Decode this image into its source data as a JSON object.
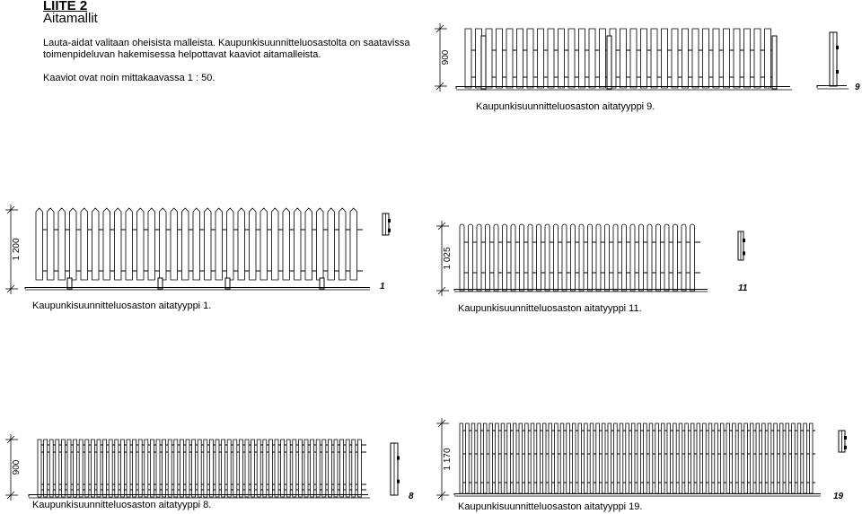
{
  "header": {
    "title": "LIITE 2",
    "subtitle": "Aitamallit"
  },
  "intro": {
    "text": "Lauta-aidat valitaan oheisista malleista. Kaupunkisuunnitteluosastolta on saatavissa toimenpideluvan hakemisessa helpottavat kaaviot aitamalleista.",
    "scale_note": "Kaaviot ovat noin mittakaavassa 1 : 50."
  },
  "fences": [
    {
      "id": "9",
      "number_label": "9",
      "height_label": "900",
      "caption": "Kaupunkisuunnitteluosaston aitatyyppi 9."
    },
    {
      "id": "1",
      "number_label": "1",
      "height_label": "1 200",
      "caption": "Kaupunkisuunnitteluosaston aitatyyppi 1."
    },
    {
      "id": "11",
      "number_label": "11",
      "height_label": "1 025",
      "caption": "Kaupunkisuunnitteluosaston aitatyyppi 11."
    },
    {
      "id": "8",
      "number_label": "8",
      "height_label": "900",
      "caption": "Kaupunkisuunnitteluosaston aitatyyppi 8."
    },
    {
      "id": "19",
      "number_label": "19",
      "height_label": "1 170",
      "caption": "Kaupunkisuunnitteluosaston aitatyyppi 19."
    }
  ]
}
